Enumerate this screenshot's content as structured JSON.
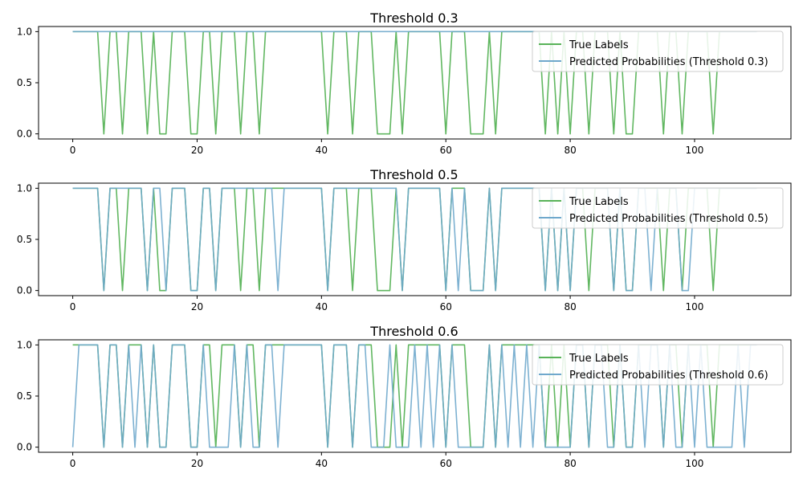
{
  "colors": {
    "true_labels": "#59b359",
    "predicted": "#6fa8cc",
    "axis": "#000000",
    "legend_border": "#cccccc"
  },
  "chart_data": [
    {
      "type": "line",
      "title": "Threshold 0.3",
      "xlim": [
        -5.5,
        115.5
      ],
      "ylim": [
        -0.05,
        1.05
      ],
      "x_ticks": [
        "0",
        "20",
        "40",
        "60",
        "80",
        "100"
      ],
      "y_ticks": [
        "0.0",
        "0.5",
        "1.0"
      ],
      "legend": [
        "True Labels",
        "Predicted Probabilities (Threshold 0.3)"
      ],
      "legend_position": "upper-right",
      "series": [
        {
          "name": "True Labels",
          "values": [
            1,
            1,
            1,
            1,
            1,
            0,
            1,
            1,
            0,
            1,
            1,
            1,
            0,
            1,
            0,
            0,
            1,
            1,
            1,
            0,
            0,
            1,
            1,
            0,
            1,
            1,
            1,
            0,
            1,
            1,
            0,
            1,
            1,
            1,
            1,
            1,
            1,
            1,
            1,
            1,
            1,
            0,
            1,
            1,
            1,
            0,
            1,
            1,
            1,
            0,
            0,
            0,
            1,
            0,
            1,
            1,
            1,
            1,
            1,
            1,
            0,
            1,
            1,
            1,
            0,
            0,
            0,
            1,
            0,
            1,
            1,
            1,
            1,
            1,
            1,
            1,
            0,
            1,
            0,
            1,
            0,
            1,
            1,
            0,
            1,
            1,
            1,
            0,
            1,
            0,
            0,
            1,
            1,
            1,
            1,
            0,
            1,
            1,
            0,
            1,
            1,
            1,
            1,
            0,
            1,
            1,
            1,
            1,
            1,
            1,
            1
          ]
        },
        {
          "name": "Predicted Probabilities (Threshold 0.3)",
          "values": [
            1,
            1,
            1,
            1,
            1,
            1,
            1,
            1,
            1,
            1,
            1,
            1,
            1,
            1,
            1,
            1,
            1,
            1,
            1,
            1,
            1,
            1,
            1,
            1,
            1,
            1,
            1,
            1,
            1,
            1,
            1,
            1,
            1,
            1,
            1,
            1,
            1,
            1,
            1,
            1,
            1,
            1,
            1,
            1,
            1,
            1,
            1,
            1,
            1,
            1,
            1,
            1,
            1,
            1,
            1,
            1,
            1,
            1,
            1,
            1,
            1,
            1,
            1,
            1,
            1,
            1,
            1,
            1,
            1,
            1,
            1,
            1,
            1,
            1,
            1,
            1,
            1,
            1,
            1,
            1,
            1,
            1,
            1,
            1,
            1,
            1,
            1,
            1,
            1,
            1,
            1,
            1,
            1,
            1,
            1,
            1,
            1,
            1,
            1,
            1,
            1,
            1,
            1,
            1,
            1,
            1,
            1,
            1,
            1,
            1,
            1
          ]
        }
      ]
    },
    {
      "type": "line",
      "title": "Threshold 0.5",
      "xlim": [
        -5.5,
        115.5
      ],
      "ylim": [
        -0.05,
        1.05
      ],
      "x_ticks": [
        "0",
        "20",
        "40",
        "60",
        "80",
        "100"
      ],
      "y_ticks": [
        "0.0",
        "0.5",
        "1.0"
      ],
      "legend": [
        "True Labels",
        "Predicted Probabilities (Threshold 0.5)"
      ],
      "legend_position": "upper-right",
      "series": [
        {
          "name": "True Labels",
          "values": [
            1,
            1,
            1,
            1,
            1,
            0,
            1,
            1,
            0,
            1,
            1,
            1,
            0,
            1,
            0,
            0,
            1,
            1,
            1,
            0,
            0,
            1,
            1,
            0,
            1,
            1,
            1,
            0,
            1,
            1,
            0,
            1,
            1,
            1,
            1,
            1,
            1,
            1,
            1,
            1,
            1,
            0,
            1,
            1,
            1,
            0,
            1,
            1,
            1,
            0,
            0,
            0,
            1,
            0,
            1,
            1,
            1,
            1,
            1,
            1,
            0,
            1,
            1,
            1,
            0,
            0,
            0,
            1,
            0,
            1,
            1,
            1,
            1,
            1,
            1,
            1,
            0,
            1,
            0,
            1,
            0,
            1,
            1,
            0,
            1,
            1,
            1,
            0,
            1,
            0,
            0,
            1,
            1,
            1,
            1,
            0,
            1,
            1,
            0,
            1,
            1,
            1,
            1,
            0,
            1,
            1,
            1,
            1,
            1,
            1,
            1
          ]
        },
        {
          "name": "Predicted Probabilities (Threshold 0.5)",
          "values": [
            1,
            1,
            1,
            1,
            1,
            0,
            1,
            1,
            1,
            1,
            1,
            1,
            0,
            1,
            1,
            0,
            1,
            1,
            1,
            0,
            0,
            1,
            1,
            0,
            1,
            1,
            1,
            1,
            1,
            1,
            1,
            1,
            1,
            0,
            1,
            1,
            1,
            1,
            1,
            1,
            1,
            0,
            1,
            1,
            1,
            1,
            1,
            1,
            1,
            1,
            1,
            1,
            1,
            0,
            1,
            1,
            1,
            1,
            1,
            1,
            0,
            1,
            0,
            1,
            0,
            0,
            0,
            1,
            0,
            1,
            1,
            1,
            1,
            1,
            1,
            1,
            0,
            1,
            0,
            1,
            0,
            1,
            1,
            1,
            1,
            1,
            1,
            0,
            1,
            0,
            0,
            1,
            1,
            0,
            1,
            1,
            1,
            1,
            0,
            0,
            1,
            1,
            1,
            1,
            1,
            1,
            1,
            1,
            1,
            1,
            1
          ]
        }
      ]
    },
    {
      "type": "line",
      "title": "Threshold 0.6",
      "xlim": [
        -5.5,
        115.5
      ],
      "ylim": [
        -0.05,
        1.05
      ],
      "x_ticks": [
        "0",
        "20",
        "40",
        "60",
        "80",
        "100"
      ],
      "y_ticks": [
        "0.0",
        "0.5",
        "1.0"
      ],
      "legend": [
        "True Labels",
        "Predicted Probabilities (Threshold 0.6)"
      ],
      "legend_position": "upper-right",
      "series": [
        {
          "name": "True Labels",
          "values": [
            1,
            1,
            1,
            1,
            1,
            0,
            1,
            1,
            0,
            1,
            1,
            1,
            0,
            1,
            0,
            0,
            1,
            1,
            1,
            0,
            0,
            1,
            1,
            0,
            1,
            1,
            1,
            0,
            1,
            1,
            0,
            1,
            1,
            1,
            1,
            1,
            1,
            1,
            1,
            1,
            1,
            0,
            1,
            1,
            1,
            0,
            1,
            1,
            1,
            0,
            0,
            0,
            1,
            0,
            1,
            1,
            1,
            1,
            1,
            1,
            0,
            1,
            1,
            1,
            0,
            0,
            0,
            1,
            0,
            1,
            1,
            1,
            1,
            1,
            1,
            1,
            0,
            1,
            0,
            1,
            0,
            1,
            1,
            0,
            1,
            1,
            1,
            0,
            1,
            0,
            0,
            1,
            1,
            1,
            1,
            0,
            1,
            1,
            0,
            1,
            1,
            1,
            1,
            0,
            1,
            1,
            1,
            1,
            1,
            1,
            1
          ]
        },
        {
          "name": "Predicted Probabilities (Threshold 0.6)",
          "values": [
            0,
            1,
            1,
            1,
            1,
            0,
            1,
            1,
            0,
            1,
            0,
            1,
            0,
            1,
            0,
            0,
            1,
            1,
            1,
            0,
            0,
            1,
            0,
            0,
            0,
            0,
            1,
            0,
            1,
            0,
            0,
            1,
            1,
            0,
            1,
            1,
            1,
            1,
            1,
            1,
            1,
            0,
            1,
            1,
            1,
            0,
            1,
            1,
            0,
            0,
            0,
            1,
            0,
            0,
            0,
            1,
            0,
            1,
            0,
            1,
            0,
            1,
            0,
            0,
            0,
            0,
            0,
            1,
            0,
            1,
            0,
            1,
            0,
            1,
            0,
            1,
            0,
            0,
            0,
            0,
            0,
            1,
            1,
            0,
            1,
            1,
            0,
            0,
            1,
            0,
            0,
            1,
            0,
            1,
            1,
            0,
            1,
            0,
            0,
            1,
            0,
            1,
            0,
            0,
            0,
            0,
            0,
            1,
            0,
            1,
            1
          ]
        }
      ]
    }
  ]
}
